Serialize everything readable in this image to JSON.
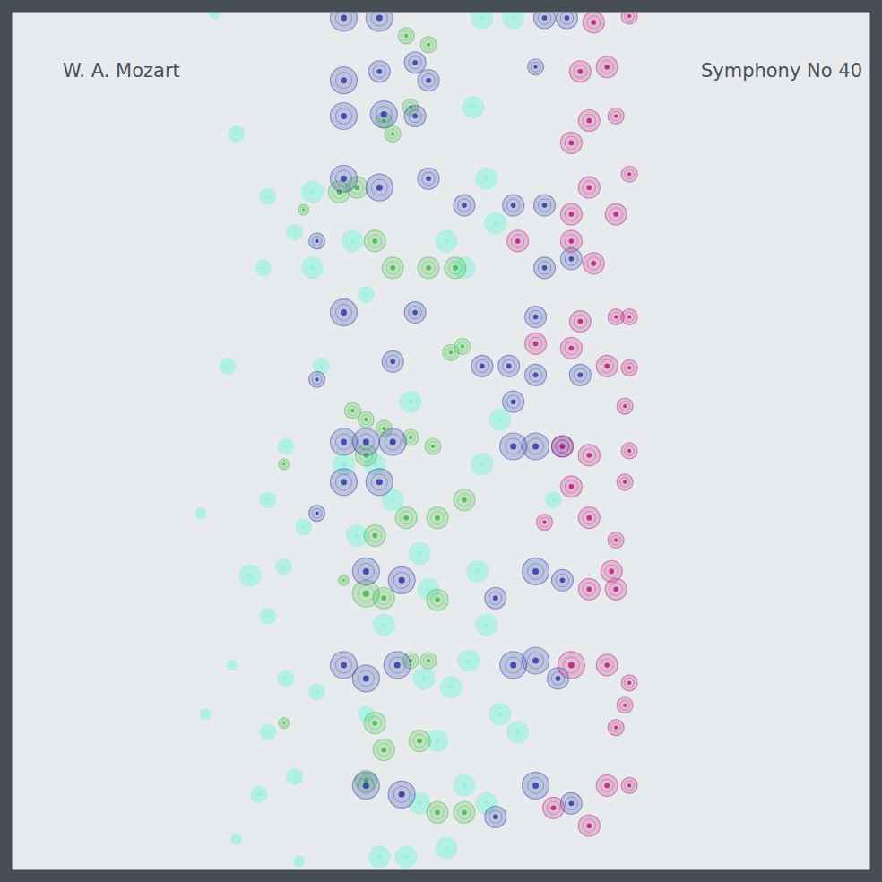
{
  "chart_data": {
    "type": "scatter",
    "title": "Symphony No 40",
    "subtitle": "W. A. Mozart",
    "tick_labels": false,
    "grid": false,
    "xlim": [
      0,
      96
    ],
    "ylim": [
      96,
      0
    ],
    "series": [
      {
        "color": "#7cf5d9",
        "marker": "circle",
        "x": [
          22.6,
          25.1,
          28.1,
          24.1,
          30.6,
          28.6,
          21.1,
          26.6,
          30.4,
          32.6,
          28.6,
          24.6,
          30.6,
          34.1,
          21.6,
          28.6,
          31.6,
          27.6,
          25.1,
          32.1,
          34.6,
          33.6,
          31.6,
          28.6,
          33.6,
          38.1,
          39.6,
          40.6,
          42.6,
          41.6,
          41.1,
          44.6,
          45.6,
          46.6,
          46.1,
          47.6,
          48.6,
          50.6,
          51.6,
          52.6,
          56.1,
          53.1,
          54.1,
          54.6,
          52.6,
          52.1,
          53.1,
          51.1,
          54.6,
          56.6,
          50.6,
          53.1,
          45.6,
          44.1,
          39.6,
          38.6,
          37.1,
          48.6,
          60.6,
          49.1
        ],
        "values": [
          0.1,
          13.6,
          28.6,
          39.6,
          48.6,
          54.6,
          56.1,
          63.1,
          62.1,
          57.6,
          67.6,
          73.1,
          74.6,
          76.1,
          78.6,
          80.6,
          85.6,
          87.6,
          92.6,
          95.1,
          39.6,
          20.1,
          24.6,
          20.6,
          28.6,
          25.6,
          31.6,
          50.6,
          54.6,
          68.6,
          94.6,
          43.6,
          60.6,
          64.6,
          74.6,
          81.6,
          25.6,
          28.6,
          10.6,
          0.6,
          0.6,
          18.6,
          23.6,
          45.6,
          50.6,
          62.6,
          68.6,
          72.6,
          78.6,
          80.6,
          86.6,
          88.6,
          88.6,
          94.6,
          78.6,
          58.6,
          50.6,
          93.6,
          54.6,
          75.6
        ],
        "sizes": [
          1,
          1.5,
          1.5,
          1.5,
          1.5,
          1.5,
          1,
          2,
          1.5,
          1.5,
          1.5,
          1,
          1.5,
          1.5,
          1,
          1.5,
          1.5,
          1.5,
          1,
          1,
          1.5,
          2,
          1.5,
          1.5,
          2,
          2,
          1.5,
          2,
          2,
          2,
          2,
          2,
          2,
          2,
          2,
          2,
          2,
          2,
          2,
          2,
          2,
          2,
          2,
          2,
          2,
          2,
          2,
          2,
          2,
          2,
          2,
          2,
          2,
          2,
          1.5,
          2,
          2,
          2,
          1.5,
          2
        ]
      },
      {
        "color": "#3cbb3c",
        "marker": "circle",
        "x": [
          38.6,
          36.6,
          42.6,
          41.6,
          44.6,
          46.6,
          44.1,
          32.6,
          40.6,
          42.6,
          46.6,
          49.6,
          49.1,
          50.4,
          38.1,
          39.6,
          41.6,
          44.6,
          47.1,
          39.6,
          40.6,
          44.1,
          47.6,
          50.6,
          39.6,
          41.6,
          47.6,
          44.6,
          46.6,
          40.6,
          41.6,
          45.6,
          39.6,
          47.6,
          50.6,
          37.1,
          30.4,
          30.4
        ],
        "values": [
          19.6,
          20.1,
          13.6,
          12.1,
          10.6,
          3.6,
          2.6,
          22.1,
          25.6,
          28.6,
          28.6,
          28.6,
          38.1,
          37.4,
          44.6,
          45.6,
          46.6,
          47.6,
          48.6,
          49.6,
          58.6,
          56.6,
          56.6,
          54.6,
          65.1,
          65.6,
          65.8,
          72.6,
          72.6,
          79.6,
          82.6,
          81.6,
          86.1,
          89.6,
          89.6,
          63.6,
          50.6,
          79.6
        ],
        "sizes": [
          2,
          2,
          1.5,
          1.5,
          1.5,
          1.5,
          1.5,
          1,
          2,
          2,
          2,
          2,
          1.5,
          1.5,
          1.5,
          1.5,
          1.5,
          1.5,
          1.5,
          2,
          2,
          2,
          2,
          2,
          2.5,
          2,
          2,
          1.5,
          1.5,
          2,
          2,
          2,
          2,
          2,
          2,
          1,
          1,
          1
        ]
      },
      {
        "color": "#2c3aa8",
        "marker": "circle",
        "x": [
          37.1,
          37.1,
          41.1,
          41.1,
          45.1,
          46.6,
          37.1,
          41.6,
          45.1,
          37.1,
          41.1,
          46.6,
          50.6,
          56.1,
          59.6,
          59.6,
          62.6,
          34.1,
          37.1,
          45.1,
          58.6,
          42.6,
          52.6,
          55.6,
          58.6,
          63.6,
          56.1,
          37.1,
          39.6,
          42.6,
          37.1,
          41.1,
          56.1,
          58.6,
          61.6,
          39.6,
          43.6,
          54.1,
          58.6,
          61.6,
          37.1,
          39.6,
          43.1,
          56.1,
          58.6,
          61.1,
          39.6,
          43.6,
          58.6,
          62.6,
          54.1,
          34.1,
          34.1,
          59.6,
          62.1,
          58.6
        ],
        "values": [
          0.6,
          7.6,
          0.6,
          6.6,
          5.6,
          7.6,
          11.6,
          11.4,
          11.6,
          18.6,
          19.6,
          18.6,
          21.6,
          21.6,
          21.6,
          28.6,
          27.6,
          25.6,
          33.6,
          33.6,
          34.1,
          39.1,
          39.6,
          39.6,
          40.6,
          40.6,
          43.6,
          48.1,
          48.1,
          48.1,
          52.6,
          52.6,
          48.6,
          48.6,
          48.6,
          62.6,
          63.6,
          65.6,
          62.6,
          63.6,
          73.1,
          74.6,
          73.1,
          73.1,
          72.6,
          74.6,
          86.6,
          87.6,
          86.6,
          88.6,
          90.1,
          41.1,
          56.1,
          0.6,
          0.6,
          6.1
        ],
        "sizes": [
          2.5,
          2.5,
          2.5,
          2,
          2,
          2,
          2.5,
          2.5,
          2,
          2.5,
          2.5,
          2,
          2,
          2,
          2,
          2,
          2,
          1.5,
          2.5,
          2,
          2,
          2,
          2,
          2,
          2,
          2,
          2,
          2.5,
          2.5,
          2.5,
          2.5,
          2.5,
          2.5,
          2.5,
          2,
          2.5,
          2.5,
          2,
          2.5,
          2,
          2.5,
          2.5,
          2.5,
          2.5,
          2.5,
          2,
          2.5,
          2.5,
          2.5,
          2,
          2,
          1.5,
          1.5,
          2,
          2,
          1.5
        ]
      },
      {
        "color": "#c0187a",
        "marker": "circle",
        "x": [
          65.1,
          69.1,
          63.6,
          66.6,
          67.6,
          64.6,
          62.6,
          69.1,
          64.6,
          67.6,
          62.6,
          56.6,
          62.6,
          65.1,
          67.6,
          69.1,
          63.6,
          58.6,
          62.6,
          66.6,
          69.1,
          68.6,
          61.6,
          64.6,
          69.1,
          68.6,
          62.6,
          59.6,
          64.6,
          67.6,
          67.1,
          64.6,
          67.6,
          62.6,
          66.6,
          69.1,
          68.6,
          67.6,
          66.6,
          69.1,
          64.6,
          60.6
        ],
        "values": [
          1.1,
          0.4,
          6.6,
          6.1,
          11.6,
          12.1,
          14.6,
          18.1,
          19.6,
          22.6,
          22.6,
          25.6,
          25.6,
          28.1,
          34.1,
          34.1,
          34.6,
          37.1,
          37.6,
          39.6,
          39.8,
          44.1,
          48.6,
          49.6,
          49.1,
          52.6,
          53.1,
          57.1,
          56.6,
          59.1,
          62.6,
          64.6,
          64.6,
          73.1,
          73.1,
          75.1,
          77.6,
          80.1,
          86.6,
          86.6,
          91.1,
          89.1
        ],
        "sizes": [
          2,
          1.5,
          2,
          2,
          1.5,
          2,
          2,
          1.5,
          2,
          2,
          2,
          2,
          2,
          2,
          1.5,
          1.5,
          2,
          2,
          2,
          2,
          1.5,
          1.5,
          2,
          2,
          1.5,
          1.5,
          2,
          1.5,
          2,
          1.5,
          2,
          2,
          2,
          2.5,
          2,
          1.5,
          1.5,
          1.5,
          2,
          1.5,
          2,
          2
        ]
      }
    ]
  }
}
